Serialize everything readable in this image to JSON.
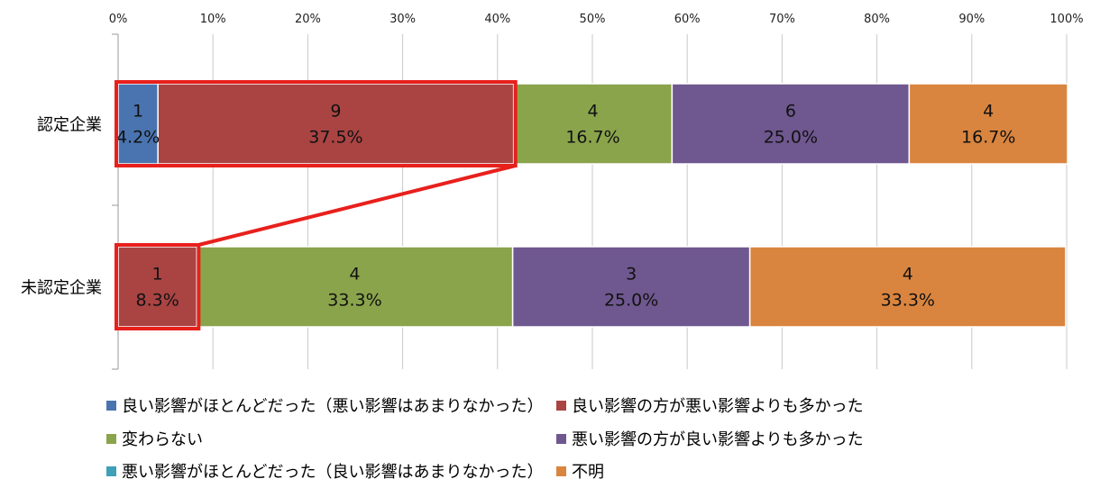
{
  "chart_data": {
    "type": "bar",
    "orientation": "horizontal",
    "stacked": "percent",
    "categories": [
      "認定企業",
      "未認定企業"
    ],
    "series": [
      {
        "name": "良い影響がほとんどだった（悪い影響はあまりなかった）",
        "color": "#4a74b0",
        "counts": [
          1,
          0
        ],
        "percents": [
          "4.2%",
          ""
        ],
        "values": [
          4.2,
          0
        ]
      },
      {
        "name": "良い影響の方が悪い影響よりも多かった",
        "color": "#a94443",
        "counts": [
          9,
          1
        ],
        "percents": [
          "37.5%",
          "8.3%"
        ],
        "values": [
          37.5,
          8.3
        ]
      },
      {
        "name": "変わらない",
        "color": "#8aa44c",
        "counts": [
          4,
          4
        ],
        "percents": [
          "16.7%",
          "33.3%"
        ],
        "values": [
          16.7,
          33.3
        ]
      },
      {
        "name": "悪い影響の方が良い影響よりも多かった",
        "color": "#6f578f",
        "counts": [
          6,
          3
        ],
        "percents": [
          "25.0%",
          "25.0%"
        ],
        "values": [
          25.0,
          25.0
        ]
      },
      {
        "name": "悪い影響がほとんどだった（良い影響はあまりなかった）",
        "color": "#40a0b8",
        "counts": [
          0,
          0
        ],
        "percents": [
          "",
          ""
        ],
        "values": [
          0,
          0
        ]
      },
      {
        "name": "不明",
        "color": "#d9853f",
        "counts": [
          4,
          4
        ],
        "percents": [
          "16.7%",
          "33.3%"
        ],
        "values": [
          16.7,
          33.3
        ]
      }
    ],
    "xlim": [
      0,
      100
    ],
    "x_ticks": [
      "0%",
      "10%",
      "20%",
      "30%",
      "40%",
      "50%",
      "60%",
      "70%",
      "80%",
      "90%",
      "100%"
    ],
    "grid": true,
    "legend_position": "bottom",
    "highlight_color": "#e8201c"
  }
}
